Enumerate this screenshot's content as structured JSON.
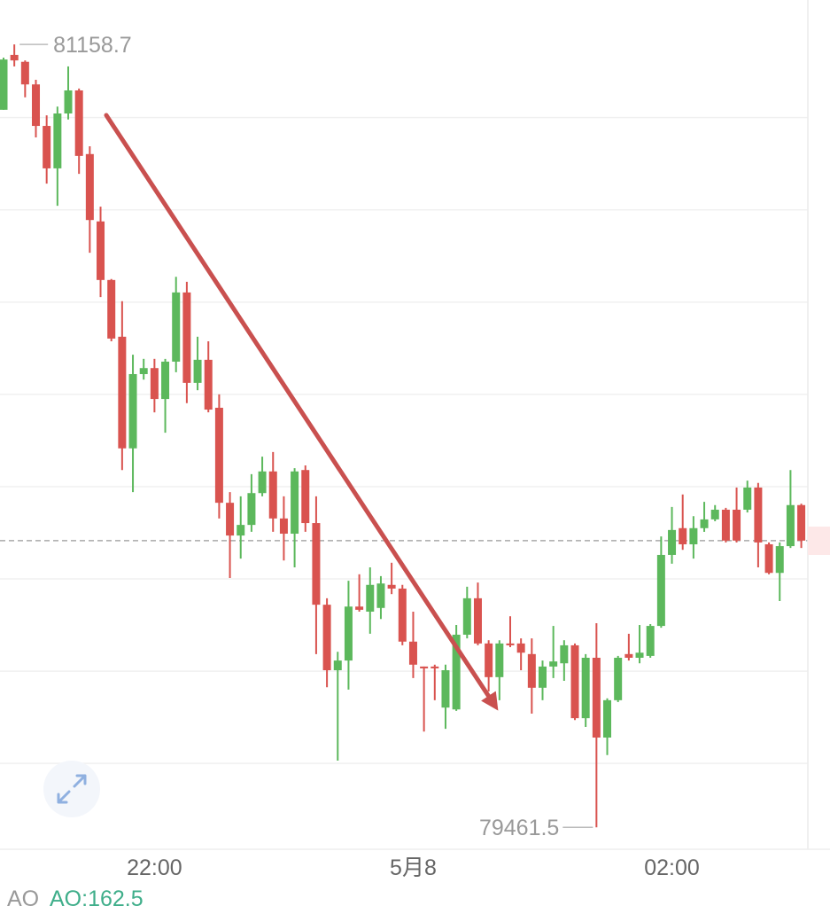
{
  "chart_data": {
    "type": "candlestick",
    "categories": [
      null,
      null,
      null,
      null,
      null,
      null,
      null,
      null,
      null,
      null,
      null,
      null,
      null,
      null,
      "22:00",
      null,
      null,
      null,
      null,
      null,
      null,
      null,
      null,
      null,
      null,
      null,
      null,
      null,
      null,
      null,
      null,
      null,
      null,
      null,
      null,
      null,
      null,
      null,
      "5月8",
      null,
      null,
      null,
      null,
      null,
      null,
      null,
      null,
      null,
      null,
      null,
      null,
      null,
      null,
      null,
      null,
      null,
      null,
      null,
      null,
      null,
      null,
      null,
      "02:00",
      null,
      null,
      null,
      null,
      null,
      null,
      null,
      null,
      null,
      null,
      null,
      null
    ],
    "open": [
      81017,
      81136,
      81121,
      81072,
      80982,
      80890,
      81009,
      81059,
      80921,
      80775,
      80648,
      80525,
      80283,
      80444,
      80457,
      80390,
      80471,
      80621,
      80425,
      80475,
      80371,
      80165,
      80094,
      80117,
      80186,
      80233,
      80131,
      80098,
      80236,
      80121,
      79944,
      79802,
      79823,
      79940,
      79929,
      79937,
      79987,
      79979,
      79864,
      79810,
      79810,
      79721,
      79717,
      79879,
      79958,
      79860,
      79787,
      79860,
      79860,
      79837,
      79764,
      79810,
      79817,
      79856,
      79698,
      79829,
      79656,
      79737,
      79837,
      79829,
      79833,
      79898,
      80052,
      80110,
      80075,
      80110,
      80129,
      80150,
      80150,
      80150,
      80198,
      80075,
      80013,
      80071,
      80160
    ],
    "high": [
      81130,
      81158.7,
      81124,
      81082,
      81005,
      81024,
      81111,
      81063,
      80938,
      80807,
      80650,
      80602,
      80486,
      80477,
      80477,
      80477,
      80655,
      80644,
      80525,
      80515,
      80400,
      80188,
      80179,
      80227,
      80265,
      80275,
      80179,
      80240,
      80246,
      80179,
      79958,
      79842,
      79996,
      80010,
      80025,
      80006,
      80035,
      79987,
      79929,
      79810,
      79814,
      79814,
      79900,
      79983,
      79992,
      79867,
      79867,
      79919,
      79871,
      79871,
      79823,
      79898,
      79867,
      79860,
      79837,
      79904,
      79741,
      79833,
      79881,
      79900,
      79902,
      80092,
      80156,
      80183,
      80136,
      80167,
      80160,
      80154,
      80198,
      80213,
      80208,
      80079,
      80079,
      80236,
      80163
    ],
    "low": [
      81017,
      81111,
      81044,
      80957,
      80857,
      80809,
      80996,
      80878,
      80707,
      80611,
      80515,
      80236,
      80188,
      80432,
      80361,
      80317,
      80448,
      80381,
      80409,
      80361,
      80131,
      80002,
      80044,
      80102,
      80179,
      80102,
      80040,
      80025,
      80102,
      79837,
      79765,
      79606,
      79760,
      79929,
      79881,
      79913,
      79967,
      79856,
      79785,
      79669,
      79737,
      79675,
      79714,
      79871,
      79856,
      79756,
      79737,
      79852,
      79802,
      79708,
      79737,
      79785,
      79779,
      79694,
      79679,
      79461.5,
      79618,
      79733,
      79823,
      79817,
      79829,
      79894,
      80033,
      80063,
      80044,
      80102,
      80125,
      80079,
      80079,
      80144,
      80025,
      80010,
      79952,
      80067,
      80067
    ],
    "close": [
      81126,
      81124,
      81072,
      80982,
      80890,
      81009,
      81059,
      80917,
      80778,
      80648,
      80521,
      80283,
      80444,
      80457,
      80390,
      80471,
      80621,
      80425,
      80475,
      80367,
      80165,
      80094,
      80117,
      80186,
      80233,
      80131,
      80098,
      80233,
      80121,
      79944,
      79802,
      79823,
      79940,
      79933,
      79987,
      79990,
      79979,
      79864,
      79814,
      79806,
      79806,
      79802,
      79879,
      79958,
      79860,
      79787,
      79860,
      79856,
      79840,
      79764,
      79810,
      79821,
      79856,
      79698,
      79829,
      79656,
      79737,
      79829,
      79829,
      79840,
      79898,
      80052,
      80106,
      80075,
      80110,
      80129,
      80150,
      80083,
      80083,
      80198,
      80079,
      80013,
      80071,
      80160,
      80083
    ],
    "up_color": "#5cb85c",
    "down_color": "#d9534f",
    "ylim": [
      79410,
      81255
    ],
    "gridlines": [
      79600,
      79800,
      80000,
      80200,
      80400,
      80600,
      80800,
      81000
    ],
    "indicator": {
      "name": "AO",
      "label": "AO:162.5"
    }
  }
}
